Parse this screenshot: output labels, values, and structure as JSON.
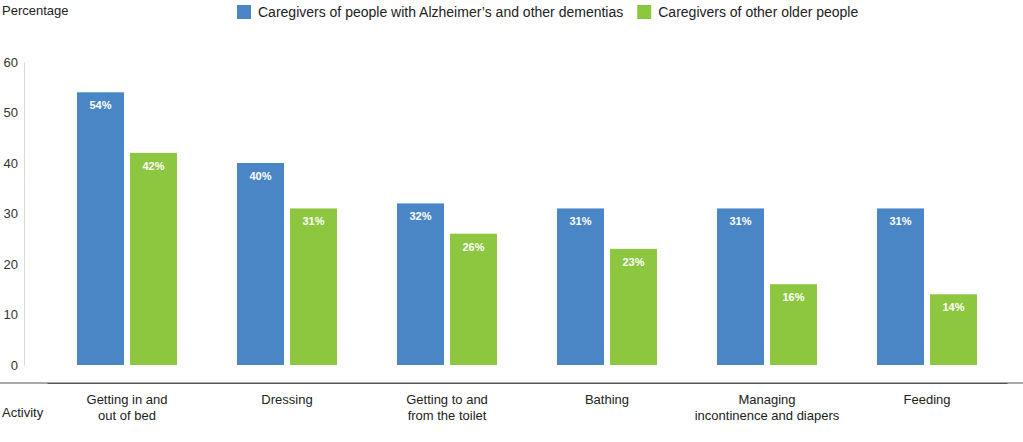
{
  "chart_data": {
    "type": "bar",
    "ylabel": "Percentage",
    "xlabel": "Activity",
    "categories": [
      "Getting in and\nout of bed",
      "Dressing",
      "Getting to and\nfrom the toilet",
      "Bathing",
      "Managing\nincontinence and diapers",
      "Feeding"
    ],
    "series": [
      {
        "name": "Caregivers of people with Alzheimer’s and other dementias",
        "color": "#4a86c5",
        "values": [
          54,
          40,
          32,
          31,
          31,
          31
        ],
        "value_labels": [
          "54%",
          "40%",
          "32%",
          "31%",
          "31%",
          "31%"
        ]
      },
      {
        "name": "Caregivers of other older people",
        "color": "#8dc63f",
        "values": [
          42,
          31,
          26,
          23,
          16,
          14
        ],
        "value_labels": [
          "42%",
          "31%",
          "26%",
          "23%",
          "16%",
          "14%"
        ]
      }
    ],
    "ylim": [
      0,
      60
    ],
    "yticks": [
      0,
      10,
      20,
      30,
      40,
      50,
      60
    ],
    "grid": false,
    "legend": "top",
    "data_labels": true
  }
}
